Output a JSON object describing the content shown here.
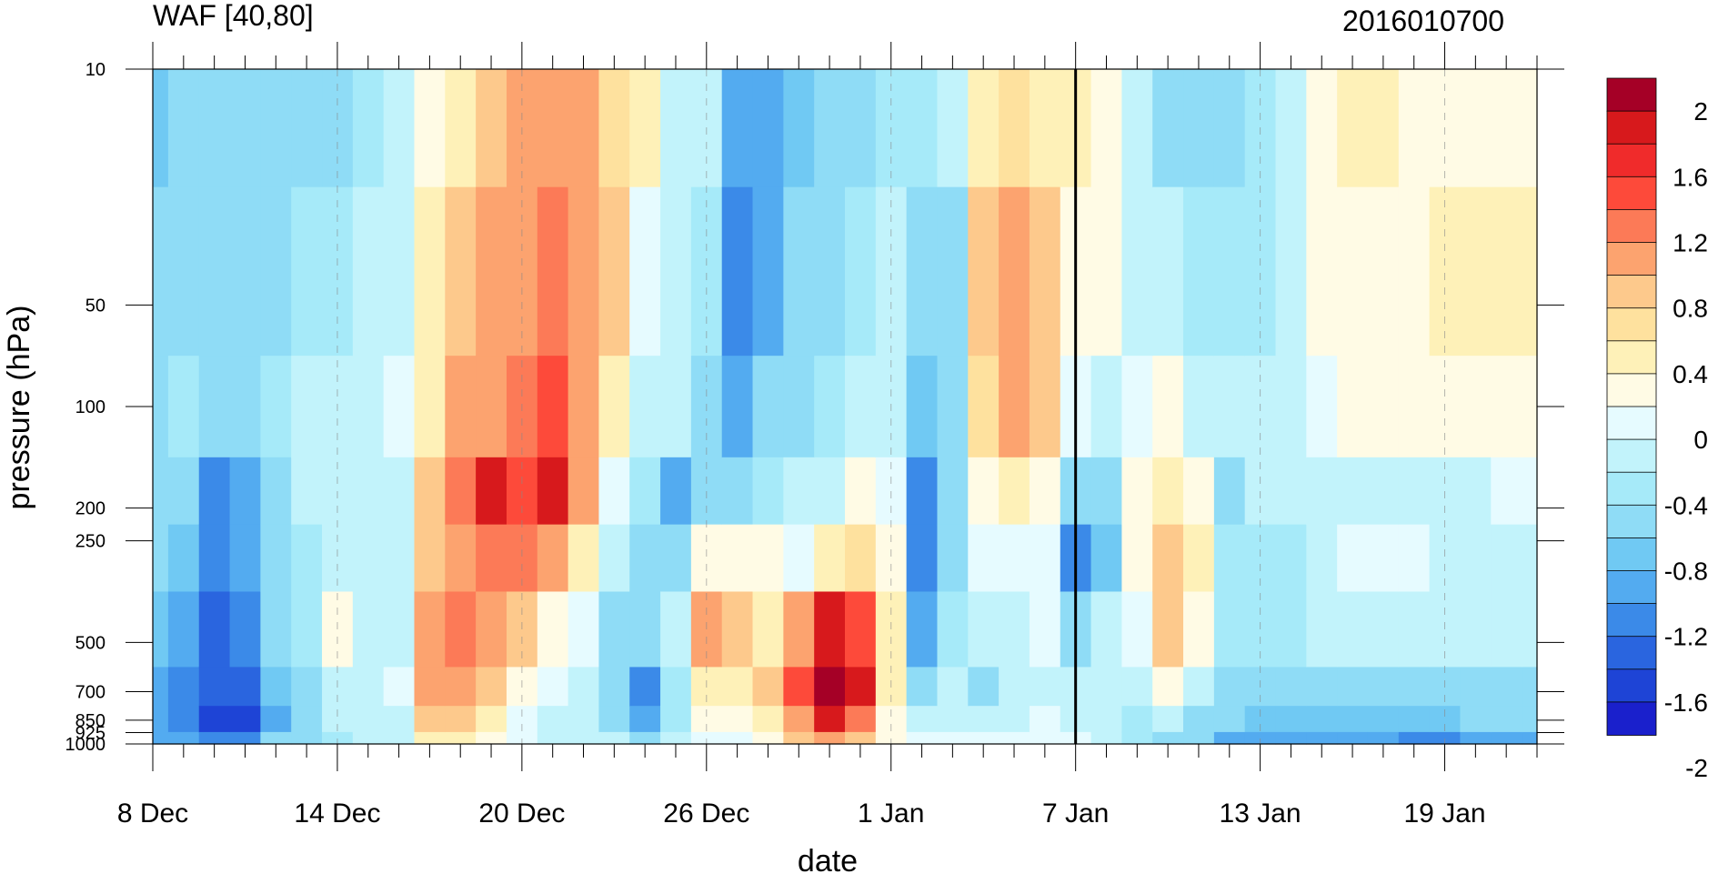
{
  "chart_data": {
    "type": "heatmap",
    "title_left": "WAF [40,80]",
    "title_right": "2016010700",
    "xlabel": "date",
    "ylabel": "pressure (hPa)",
    "x_ticks": [
      "8 Dec",
      "14 Dec",
      "20 Dec",
      "26 Dec",
      "1 Jan",
      "7 Jan",
      "13 Jan",
      "19 Jan"
    ],
    "x_tick_days": [
      0,
      6,
      12,
      18,
      24,
      30,
      36,
      42
    ],
    "x_range_days": [
      0,
      45
    ],
    "y_ticks": [
      "10",
      "50",
      "100",
      "200",
      "250",
      "500",
      "700",
      "850",
      "925",
      "1000"
    ],
    "y_tick_values": [
      10,
      50,
      100,
      200,
      250,
      500,
      700,
      850,
      925,
      1000
    ],
    "y_scale": "log",
    "ylim": [
      1000,
      10
    ],
    "marker_line_day": 30,
    "colorbar": {
      "labels": [
        "2",
        "1.6",
        "1.2",
        "0.8",
        "0.4",
        "0",
        "-0.4",
        "-0.8",
        "-1.2",
        "-1.6",
        "-2"
      ],
      "colors": [
        "#a50026",
        "#d7191c",
        "#f02b2b",
        "#fd4a3a",
        "#fc7a57",
        "#fca36f",
        "#fdc98c",
        "#fee19e",
        "#fef1b8",
        "#fffbe5",
        "#e6fbff",
        "#c2f3fb",
        "#a6eaf9",
        "#8fdcf6",
        "#70c9f3",
        "#53abf0",
        "#3b8ae8",
        "#2a65df",
        "#1e44d6",
        "#1a20cc"
      ]
    },
    "columns": [
      {
        "day": 0,
        "values": [
          -0.9,
          -0.7,
          -0.6,
          -0.7,
          -0.8,
          -0.9,
          -1.0,
          -1.1,
          -1.0
        ]
      },
      {
        "day": 1,
        "values": [
          -0.8,
          -0.6,
          -0.5,
          -0.7,
          -0.9,
          -1.1,
          -1.2,
          -1.3,
          -1.1
        ]
      },
      {
        "day": 2,
        "values": [
          -0.7,
          -0.6,
          -0.6,
          -1.2,
          -1.3,
          -1.4,
          -1.5,
          -1.6,
          -1.2
        ]
      },
      {
        "day": 3,
        "values": [
          -0.7,
          -0.6,
          -0.6,
          -1.0,
          -1.1,
          -1.3,
          -1.5,
          -1.7,
          -1.2
        ]
      },
      {
        "day": 4,
        "values": [
          -0.7,
          -0.6,
          -0.5,
          -0.6,
          -0.7,
          -0.8,
          -0.9,
          -1.0,
          -0.8
        ]
      },
      {
        "day": 5,
        "values": [
          -0.6,
          -0.5,
          -0.4,
          -0.4,
          -0.5,
          -0.5,
          -0.6,
          -0.7,
          -0.6
        ]
      },
      {
        "day": 6,
        "values": [
          -0.6,
          -0.5,
          -0.4,
          -0.3,
          -0.3,
          0.05,
          -0.3,
          -0.4,
          -0.5
        ]
      },
      {
        "day": 7,
        "values": [
          -0.5,
          -0.4,
          -0.3,
          -0.3,
          -0.3,
          -0.2,
          -0.3,
          -0.4,
          -0.4
        ]
      },
      {
        "day": 8,
        "values": [
          -0.2,
          -0.2,
          -0.1,
          -0.2,
          -0.3,
          -0.2,
          -0.1,
          -0.2,
          -0.2
        ]
      },
      {
        "day": 9,
        "values": [
          0.2,
          0.3,
          0.4,
          0.6,
          0.7,
          0.8,
          0.8,
          0.6,
          0.4
        ]
      },
      {
        "day": 10,
        "values": [
          0.4,
          0.6,
          0.8,
          1.2,
          1.0,
          1.1,
          1.0,
          0.7,
          0.4
        ]
      },
      {
        "day": 11,
        "values": [
          0.6,
          0.8,
          1.0,
          1.6,
          1.2,
          0.8,
          0.6,
          0.3,
          0.1
        ]
      },
      {
        "day": 12,
        "values": [
          0.8,
          1.0,
          1.2,
          1.4,
          1.1,
          0.6,
          0.2,
          0.0,
          -0.1
        ]
      },
      {
        "day": 13,
        "values": [
          0.9,
          1.2,
          1.3,
          1.6,
          1.0,
          0.2,
          -0.1,
          -0.2,
          -0.2
        ]
      },
      {
        "day": 14,
        "values": [
          0.8,
          1.0,
          1.0,
          0.8,
          0.4,
          -0.1,
          -0.3,
          -0.3,
          -0.2
        ]
      },
      {
        "day": 15,
        "values": [
          0.5,
          0.6,
          0.3,
          0.0,
          -0.3,
          -0.6,
          -0.8,
          -0.7,
          -0.4
        ]
      },
      {
        "day": 16,
        "values": [
          0.3,
          0.0,
          -0.3,
          -0.5,
          -0.6,
          -0.8,
          -1.2,
          -1.0,
          -0.6
        ]
      },
      {
        "day": 17,
        "values": [
          -0.2,
          -0.3,
          -0.4,
          -1.0,
          -0.7,
          -0.4,
          -0.5,
          -0.5,
          -0.3
        ]
      },
      {
        "day": 18,
        "values": [
          -0.4,
          -0.5,
          -0.6,
          -0.6,
          0.2,
          0.9,
          0.4,
          0.1,
          0.0
        ]
      },
      {
        "day": 19,
        "values": [
          -1.0,
          -1.2,
          -1.0,
          -0.6,
          0.2,
          0.6,
          0.4,
          0.2,
          0.0
        ]
      },
      {
        "day": 20,
        "values": [
          -1.1,
          -1.0,
          -0.8,
          -0.5,
          0.1,
          0.4,
          0.6,
          0.4,
          0.1
        ]
      },
      {
        "day": 21,
        "values": [
          -0.9,
          -0.8,
          -0.6,
          -0.4,
          0.0,
          0.9,
          1.4,
          1.0,
          0.6
        ]
      },
      {
        "day": 22,
        "values": [
          -0.8,
          -0.7,
          -0.5,
          -0.2,
          0.3,
          1.6,
          2.1,
          1.6,
          0.8
        ]
      },
      {
        "day": 23,
        "values": [
          -0.6,
          -0.5,
          -0.4,
          0.1,
          0.5,
          1.3,
          1.6,
          1.2,
          0.6
        ]
      },
      {
        "day": 24,
        "values": [
          -0.5,
          -0.4,
          -0.3,
          0.0,
          0.2,
          0.4,
          0.3,
          0.2,
          0.1
        ]
      },
      {
        "day": 25,
        "values": [
          -0.5,
          -0.7,
          -0.9,
          -1.3,
          -1.2,
          -1.0,
          -0.6,
          -0.3,
          -0.1
        ]
      },
      {
        "day": 26,
        "values": [
          -0.3,
          -0.6,
          -0.7,
          -0.8,
          -0.6,
          -0.5,
          -0.4,
          -0.2,
          -0.1
        ]
      },
      {
        "day": 27,
        "values": [
          0.3,
          0.6,
          0.5,
          0.2,
          -0.1,
          -0.3,
          -0.7,
          -0.4,
          -0.1
        ]
      },
      {
        "day": 28,
        "values": [
          0.5,
          1.0,
          0.8,
          0.3,
          0.0,
          -0.3,
          -0.4,
          -0.2,
          0.0
        ]
      },
      {
        "day": 29,
        "values": [
          0.4,
          0.7,
          0.6,
          0.2,
          -0.1,
          -0.1,
          -0.2,
          -0.1,
          0.0
        ]
      },
      {
        "day": 30,
        "values": [
          0.3,
          0.2,
          -0.1,
          -0.8,
          -1.3,
          -0.6,
          -0.3,
          -0.2,
          -0.1
        ]
      },
      {
        "day": 31,
        "values": [
          0.2,
          0.1,
          -0.2,
          -0.6,
          -0.9,
          -0.4,
          -0.3,
          -0.4,
          -0.4
        ]
      },
      {
        "day": 32,
        "values": [
          -0.4,
          -0.3,
          -0.1,
          0.1,
          0.2,
          0.0,
          -0.3,
          -0.5,
          -0.5
        ]
      },
      {
        "day": 33,
        "values": [
          -0.6,
          -0.4,
          0.1,
          0.4,
          0.6,
          0.6,
          0.2,
          -0.4,
          -0.6
        ]
      },
      {
        "day": 34,
        "values": [
          -0.6,
          -0.5,
          -0.2,
          0.1,
          0.3,
          0.2,
          -0.2,
          -0.6,
          -0.8
        ]
      },
      {
        "day": 35,
        "values": [
          -0.6,
          -0.5,
          -0.4,
          -0.7,
          -0.5,
          -0.5,
          -0.6,
          -0.8,
          -1.0
        ]
      },
      {
        "day": 36,
        "values": [
          -0.5,
          -0.5,
          -0.4,
          -0.4,
          -0.5,
          -0.5,
          -0.7,
          -0.9,
          -1.1
        ]
      },
      {
        "day": 37,
        "values": [
          -0.2,
          -0.4,
          -0.4,
          -0.4,
          -0.5,
          -0.5,
          -0.7,
          -0.9,
          -1.1
        ]
      },
      {
        "day": 38,
        "values": [
          0.2,
          0.1,
          -0.1,
          -0.3,
          -0.2,
          -0.4,
          -0.7,
          -0.9,
          -1.1
        ]
      },
      {
        "day": 39,
        "values": [
          0.3,
          0.2,
          0.1,
          -0.2,
          -0.1,
          -0.4,
          -0.6,
          -0.9,
          -1.1
        ]
      },
      {
        "day": 40,
        "values": [
          0.3,
          0.2,
          0.1,
          -0.2,
          -0.1,
          -0.4,
          -0.6,
          -0.9,
          -1.1
        ]
      },
      {
        "day": 41,
        "values": [
          0.2,
          0.2,
          0.1,
          -0.2,
          -0.1,
          -0.4,
          -0.6,
          -0.9,
          -1.2
        ]
      },
      {
        "day": 42,
        "values": [
          0.1,
          0.3,
          0.1,
          -0.2,
          -0.2,
          -0.4,
          -0.6,
          -0.9,
          -1.2
        ]
      },
      {
        "day": 43,
        "values": [
          0.1,
          0.3,
          0.2,
          -0.2,
          -0.3,
          -0.4,
          -0.6,
          -0.8,
          -1.1
        ]
      },
      {
        "day": 44,
        "values": [
          0.2,
          0.3,
          0.2,
          -0.1,
          -0.3,
          -0.4,
          -0.6,
          -0.8,
          -1.0
        ]
      },
      {
        "day": 45,
        "values": [
          0.2,
          0.3,
          0.2,
          -0.1,
          -0.3,
          -0.4,
          -0.6,
          -0.8,
          -1.0
        ]
      }
    ]
  }
}
